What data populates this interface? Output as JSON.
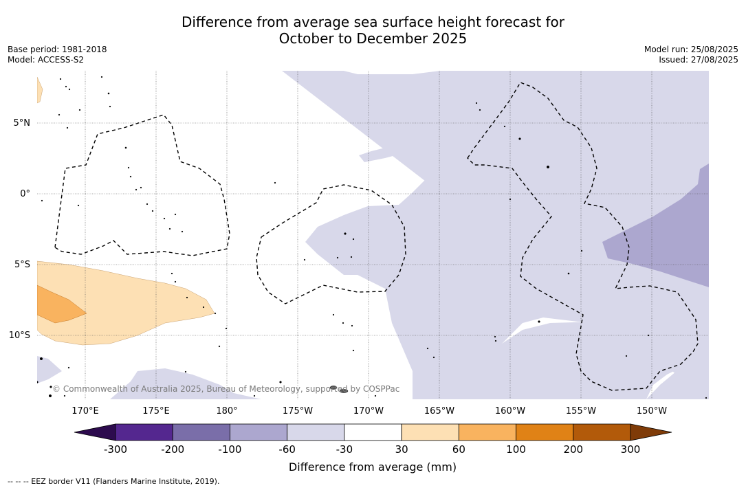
{
  "title": {
    "line1": "Difference from average sea surface height forecast for",
    "line2": "October to December 2025"
  },
  "meta_left": {
    "base_period": "Base period: 1981-2018",
    "model": "Model: ACCESS-S2"
  },
  "meta_right": {
    "model_run": "Model run: 25/08/2025",
    "issued": "Issued: 27/08/2025"
  },
  "map": {
    "lat_labels": [
      "5°N",
      "0°",
      "5°S",
      "10°S"
    ],
    "lon_labels": [
      "170°E",
      "175°E",
      "180°",
      "175°W",
      "170°W",
      "165°W",
      "160°W",
      "155°W",
      "150°W"
    ],
    "copyright": "© Commonwealth of Australia 2025, Bureau of Meteorology, supported by COSPPac"
  },
  "colorbar": {
    "label": "Difference from average (mm)",
    "ticks": [
      "-300",
      "-200",
      "-100",
      "-60",
      "-30",
      "30",
      "60",
      "100",
      "200",
      "300"
    ],
    "colors": [
      "#2d0b4e",
      "#54278f",
      "#7a6ea9",
      "#aca7cf",
      "#d8d8ea",
      "#ffffff",
      "#fde0b4",
      "#f9b35f",
      "#e08216",
      "#b25a0a",
      "#7f3b08"
    ]
  },
  "footer": "-- -- -- EEZ border V11 (Flanders Marine Institute, 2019)."
}
